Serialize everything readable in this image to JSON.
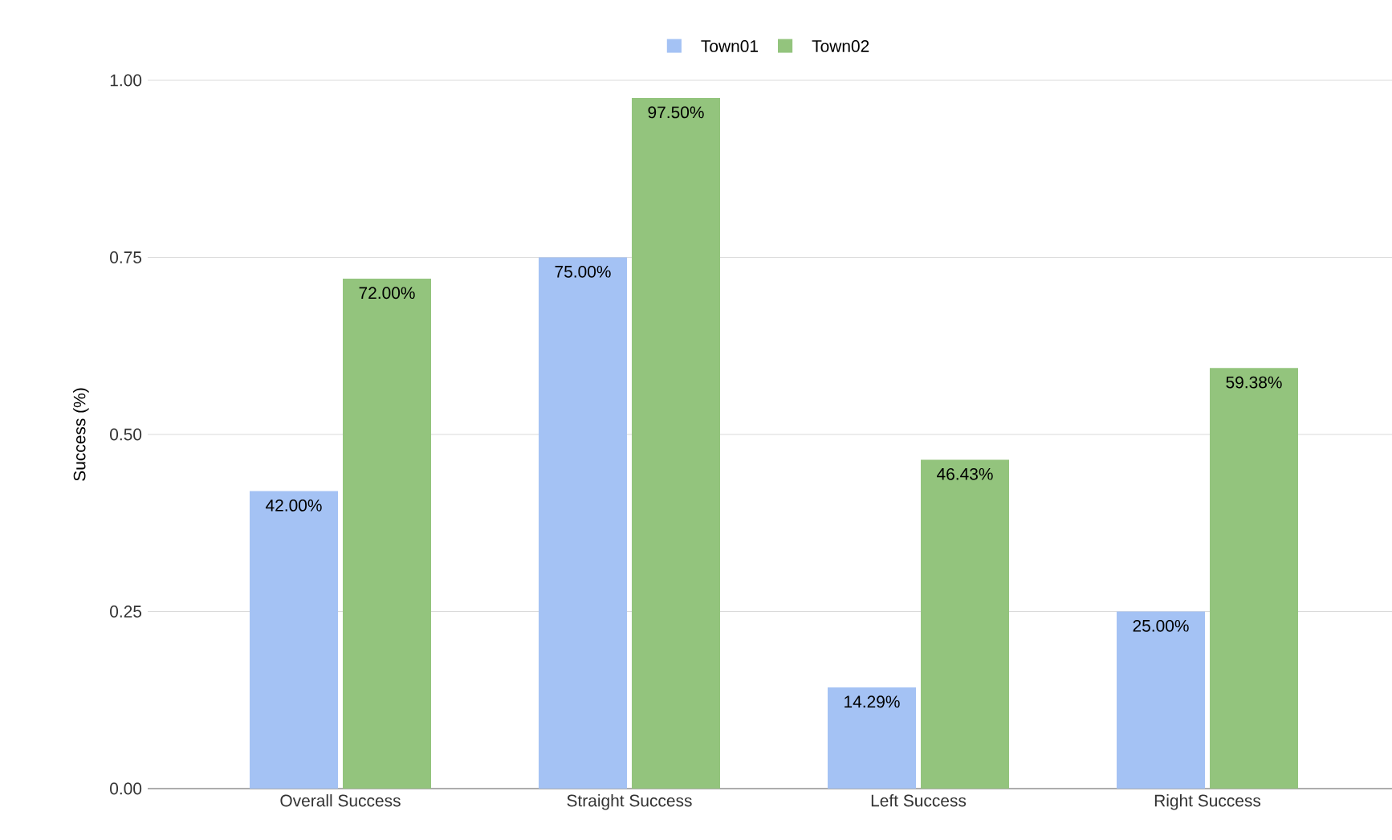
{
  "chart_data": {
    "type": "bar",
    "ylabel": "Success (%)",
    "categories": [
      "Overall Success",
      "Straight Success",
      "Left Success",
      "Right Success"
    ],
    "series": [
      {
        "name": "Town01",
        "color": "#a4c2f4",
        "values": [
          0.42,
          0.75,
          0.1429,
          0.25
        ],
        "value_labels": [
          "42.00%",
          "75.00%",
          "14.29%",
          "25.00%"
        ]
      },
      {
        "name": "Town02",
        "color": "#93c47d",
        "values": [
          0.72,
          0.975,
          0.4643,
          0.5938
        ],
        "value_labels": [
          "72.00%",
          "97.50%",
          "46.43%",
          "59.38%"
        ]
      }
    ],
    "ylim": [
      0,
      1
    ],
    "yticks": [
      {
        "value": 0,
        "label": "0.00"
      },
      {
        "value": 0.25,
        "label": "0.25"
      },
      {
        "value": 0.5,
        "label": "0.50"
      },
      {
        "value": 0.75,
        "label": "0.75"
      },
      {
        "value": 1,
        "label": "1.00"
      }
    ],
    "grid": "y",
    "legend": "top"
  }
}
